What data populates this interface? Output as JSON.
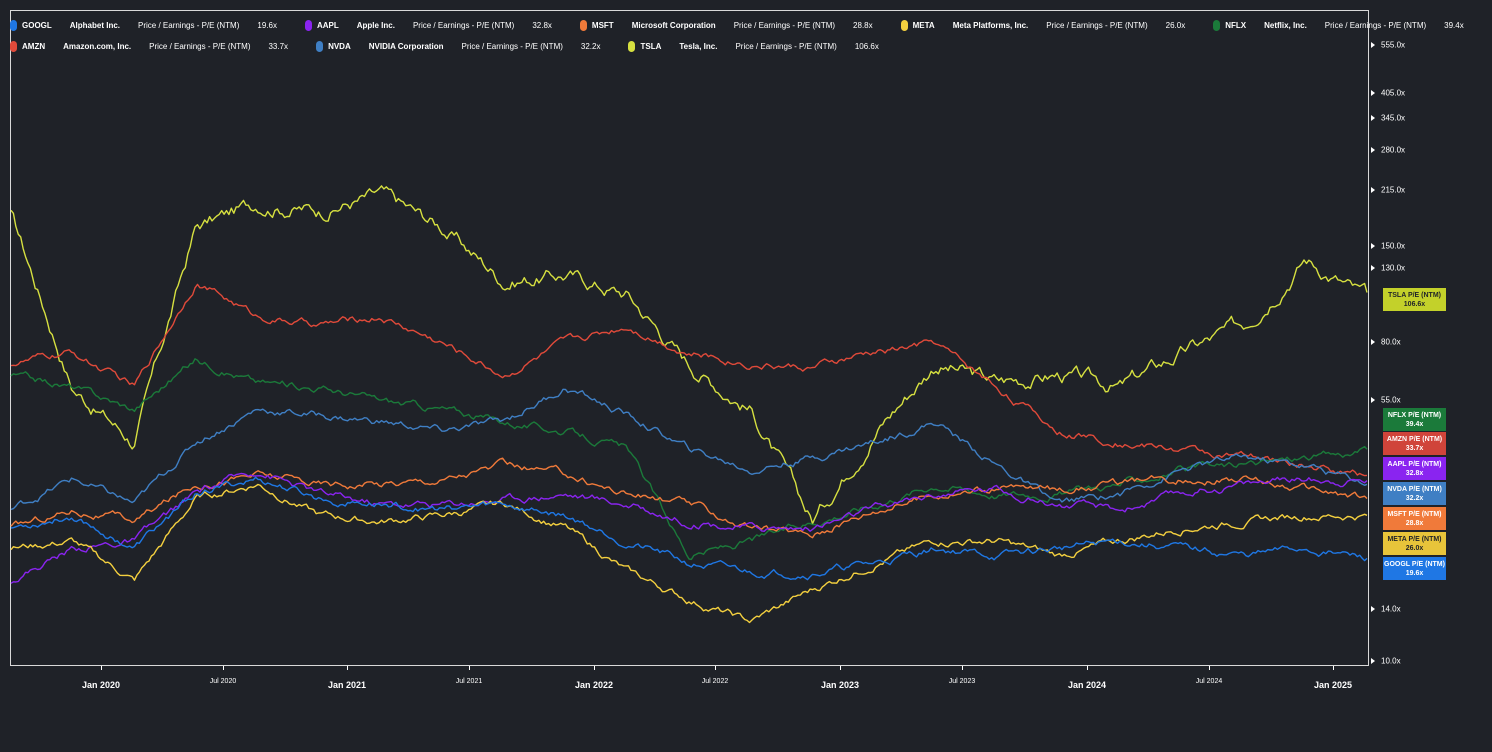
{
  "legend": [
    {
      "ticker": "GOOGL",
      "name": "Alphabet Inc.",
      "metric": "Price / Earnings - P/E (NTM)",
      "value": "19.6x",
      "color": "#1f77e4",
      "row": 0
    },
    {
      "ticker": "AAPL",
      "name": "Apple Inc.",
      "metric": "Price / Earnings - P/E (NTM)",
      "value": "32.8x",
      "color": "#8a24f0",
      "row": 0
    },
    {
      "ticker": "MSFT",
      "name": "Microsoft Corporation",
      "metric": "Price / Earnings - P/E (NTM)",
      "value": "28.8x",
      "color": "#f07a3a",
      "row": 0
    },
    {
      "ticker": "META",
      "name": "Meta Platforms, Inc.",
      "metric": "Price / Earnings - P/E (NTM)",
      "value": "26.0x",
      "color": "#f4d03f",
      "row": 0
    },
    {
      "ticker": "NFLX",
      "name": "Netflix, Inc.",
      "metric": "Price / Earnings - P/E (NTM)",
      "value": "39.4x",
      "color": "#1b7a3a",
      "row": 0
    },
    {
      "ticker": "AMZN",
      "name": "Amazon.com, Inc.",
      "metric": "Price / Earnings - P/E (NTM)",
      "value": "33.7x",
      "color": "#e04a3a",
      "row": 1
    },
    {
      "ticker": "NVDA",
      "name": "NVIDIA Corporation",
      "metric": "Price / Earnings - P/E (NTM)",
      "value": "32.2x",
      "color": "#3f7fc4",
      "row": 1
    },
    {
      "ticker": "TSLA",
      "name": "Tesla, Inc.",
      "metric": "Price / Earnings - P/E (NTM)",
      "value": "106.6x",
      "color": "#d6e040",
      "row": 1
    }
  ],
  "y_axis": {
    "labels": [
      "555.0x",
      "405.0x",
      "345.0x",
      "280.0x",
      "215.0x",
      "150.0x",
      "130.0x",
      "80.0x",
      "55.0x",
      "14.0x",
      "10.0x"
    ],
    "values": [
      555,
      405,
      345,
      280,
      215,
      150,
      130,
      80,
      55,
      14,
      10
    ],
    "scale": "log"
  },
  "x_axis": {
    "labels": [
      "Jan 2020",
      "Jul 2020",
      "Jan 2021",
      "Jul 2021",
      "Jan 2022",
      "Jul 2022",
      "Jan 2023",
      "Jul 2023",
      "Jan 2024",
      "Jul 2024",
      "Jan 2025"
    ],
    "major": [
      true,
      false,
      true,
      false,
      true,
      false,
      true,
      false,
      true,
      false,
      true
    ]
  },
  "tags": [
    {
      "label": "TSLA P/E (NTM)",
      "value": "106.6x",
      "color": "#c3d12a",
      "text": "#1f2228"
    },
    {
      "label": "NFLX P/E (NTM)",
      "value": "39.4x",
      "color": "#1b7a3a",
      "text": "#ffffff"
    },
    {
      "label": "AMZN P/E (NTM)",
      "value": "33.7x",
      "color": "#d0443a",
      "text": "#ffffff"
    },
    {
      "label": "AAPL P/E (NTM)",
      "value": "32.8x",
      "color": "#8a24f0",
      "text": "#ffffff"
    },
    {
      "label": "NVDA P/E (NTM)",
      "value": "32.2x",
      "color": "#3f7fc4",
      "text": "#ffffff"
    },
    {
      "label": "MSFT P/E (NTM)",
      "value": "28.8x",
      "color": "#f07a3a",
      "text": "#ffffff"
    },
    {
      "label": "META P/E (NTM)",
      "value": "26.0x",
      "color": "#e8c43a",
      "text": "#1f2228"
    },
    {
      "label": "GOOGL P/E (NTM)",
      "value": "19.6x",
      "color": "#1f77e4",
      "text": "#ffffff"
    }
  ],
  "chart_data": {
    "type": "line",
    "xlabel": "",
    "ylabel": "",
    "x": [
      "2019-09",
      "2019-12",
      "2020-03",
      "2020-06",
      "2020-09",
      "2020-12",
      "2021-03",
      "2021-06",
      "2021-09",
      "2021-12",
      "2022-03",
      "2022-06",
      "2022-09",
      "2022-12",
      "2023-03",
      "2023-06",
      "2023-09",
      "2023-12",
      "2024-03",
      "2024-06",
      "2024-09",
      "2024-12",
      "2025-02"
    ],
    "ylim": [
      10,
      700
    ],
    "series": [
      {
        "name": "TSLA",
        "color": "#d6e040",
        "values": [
          185,
          60,
          42,
          170,
          200,
          190,
          210,
          170,
          120,
          125,
          110,
          70,
          52,
          25,
          45,
          70,
          62,
          65,
          60,
          75,
          90,
          140,
          106.6
        ]
      },
      {
        "name": "AMZN",
        "color": "#e04a3a",
        "values": [
          70,
          75,
          60,
          120,
          95,
          90,
          95,
          80,
          65,
          80,
          90,
          75,
          70,
          68,
          75,
          80,
          60,
          45,
          42,
          40,
          38,
          36,
          33.7
        ]
      },
      {
        "name": "NFLX",
        "color": "#1b7a3a",
        "values": [
          65,
          60,
          52,
          72,
          62,
          60,
          55,
          52,
          48,
          45,
          40,
          20,
          22,
          25,
          28,
          32,
          30,
          30,
          32,
          35,
          36,
          38,
          39.4
        ]
      },
      {
        "name": "NVDA",
        "color": "#3f7fc4",
        "values": [
          27,
          33,
          28,
          42,
          52,
          50,
          48,
          45,
          48,
          60,
          50,
          40,
          35,
          38,
          42,
          48,
          36,
          28,
          30,
          35,
          38,
          36,
          32.2
        ]
      },
      {
        "name": "AAPL",
        "color": "#8a24f0",
        "values": [
          17,
          21,
          22,
          30,
          35,
          30,
          28,
          28,
          29,
          30,
          28,
          25,
          24,
          24,
          27,
          30,
          31,
          28,
          27,
          30,
          32,
          33,
          32.8
        ]
      },
      {
        "name": "MSFT",
        "color": "#f07a3a",
        "values": [
          24,
          27,
          25,
          32,
          34,
          32,
          32,
          33,
          36,
          34,
          30,
          28,
          24,
          23,
          27,
          30,
          31,
          31,
          32,
          33,
          33,
          31,
          28.8
        ]
      },
      {
        "name": "META",
        "color": "#f4d03f",
        "values": [
          21,
          22,
          17,
          29,
          32,
          26,
          25,
          26,
          28,
          24,
          18,
          15,
          13,
          16,
          19,
          22,
          22,
          20,
          22,
          24,
          25,
          26,
          26.0
        ]
      },
      {
        "name": "GOOGL",
        "color": "#1f77e4",
        "values": [
          24,
          26,
          21,
          30,
          33,
          29,
          28,
          27,
          28,
          26,
          22,
          19,
          18,
          18,
          19,
          21,
          20,
          21,
          22,
          21,
          20,
          21,
          19.6
        ]
      }
    ]
  }
}
